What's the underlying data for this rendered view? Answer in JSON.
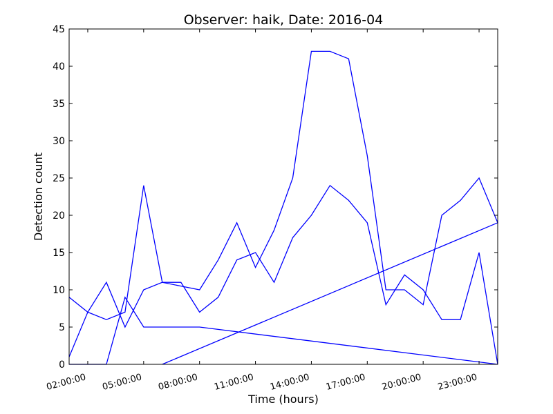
{
  "chart_data": {
    "type": "line",
    "title": "Observer: haik, Date: 2016-04",
    "xlabel": "Time (hours)",
    "ylabel": "Detection count",
    "xlim": [
      1,
      24
    ],
    "ylim": [
      0,
      45
    ],
    "grid": false,
    "colors": {
      "series": "#0000ff"
    },
    "y_ticks": [
      0,
      5,
      10,
      15,
      20,
      25,
      30,
      35,
      40,
      45
    ],
    "x_ticks": [
      {
        "x": 2,
        "label": "02:00:00"
      },
      {
        "x": 5,
        "label": "05:00:00"
      },
      {
        "x": 8,
        "label": "08:00:00"
      },
      {
        "x": 11,
        "label": "11:00:00"
      },
      {
        "x": 14,
        "label": "14:00:00"
      },
      {
        "x": 17,
        "label": "17:00:00"
      },
      {
        "x": 20,
        "label": "20:00:00"
      },
      {
        "x": 23,
        "label": "23:00:00"
      }
    ],
    "series": [
      {
        "x": [
          1,
          2,
          3,
          4,
          5,
          6,
          7,
          8,
          9,
          10,
          11,
          12,
          13,
          14,
          15,
          16,
          17,
          18,
          19,
          20,
          21,
          22,
          23,
          24
        ],
        "y": [
          1,
          7,
          11,
          5,
          10,
          11,
          11,
          7,
          9,
          14,
          15,
          11,
          17,
          20,
          24,
          22,
          19,
          8,
          12,
          10,
          6,
          6,
          15,
          0
        ]
      },
      {
        "x": [
          1,
          2,
          3,
          4,
          5,
          6,
          7,
          8,
          9,
          10,
          11,
          12,
          13,
          14,
          15,
          16,
          17,
          18,
          19,
          20,
          21,
          22,
          23,
          24,
          6
        ],
        "y": [
          9,
          7,
          6,
          7,
          24,
          11,
          10.5,
          10,
          14,
          19,
          13,
          18,
          25,
          42,
          42,
          41,
          28,
          10,
          10,
          8,
          20,
          22,
          25,
          19,
          0
        ]
      },
      {
        "x": [
          1,
          2,
          3,
          4,
          5,
          6,
          7,
          8,
          24
        ],
        "y": [
          0,
          0,
          0,
          9,
          5,
          5,
          5,
          5,
          0
        ]
      }
    ]
  }
}
